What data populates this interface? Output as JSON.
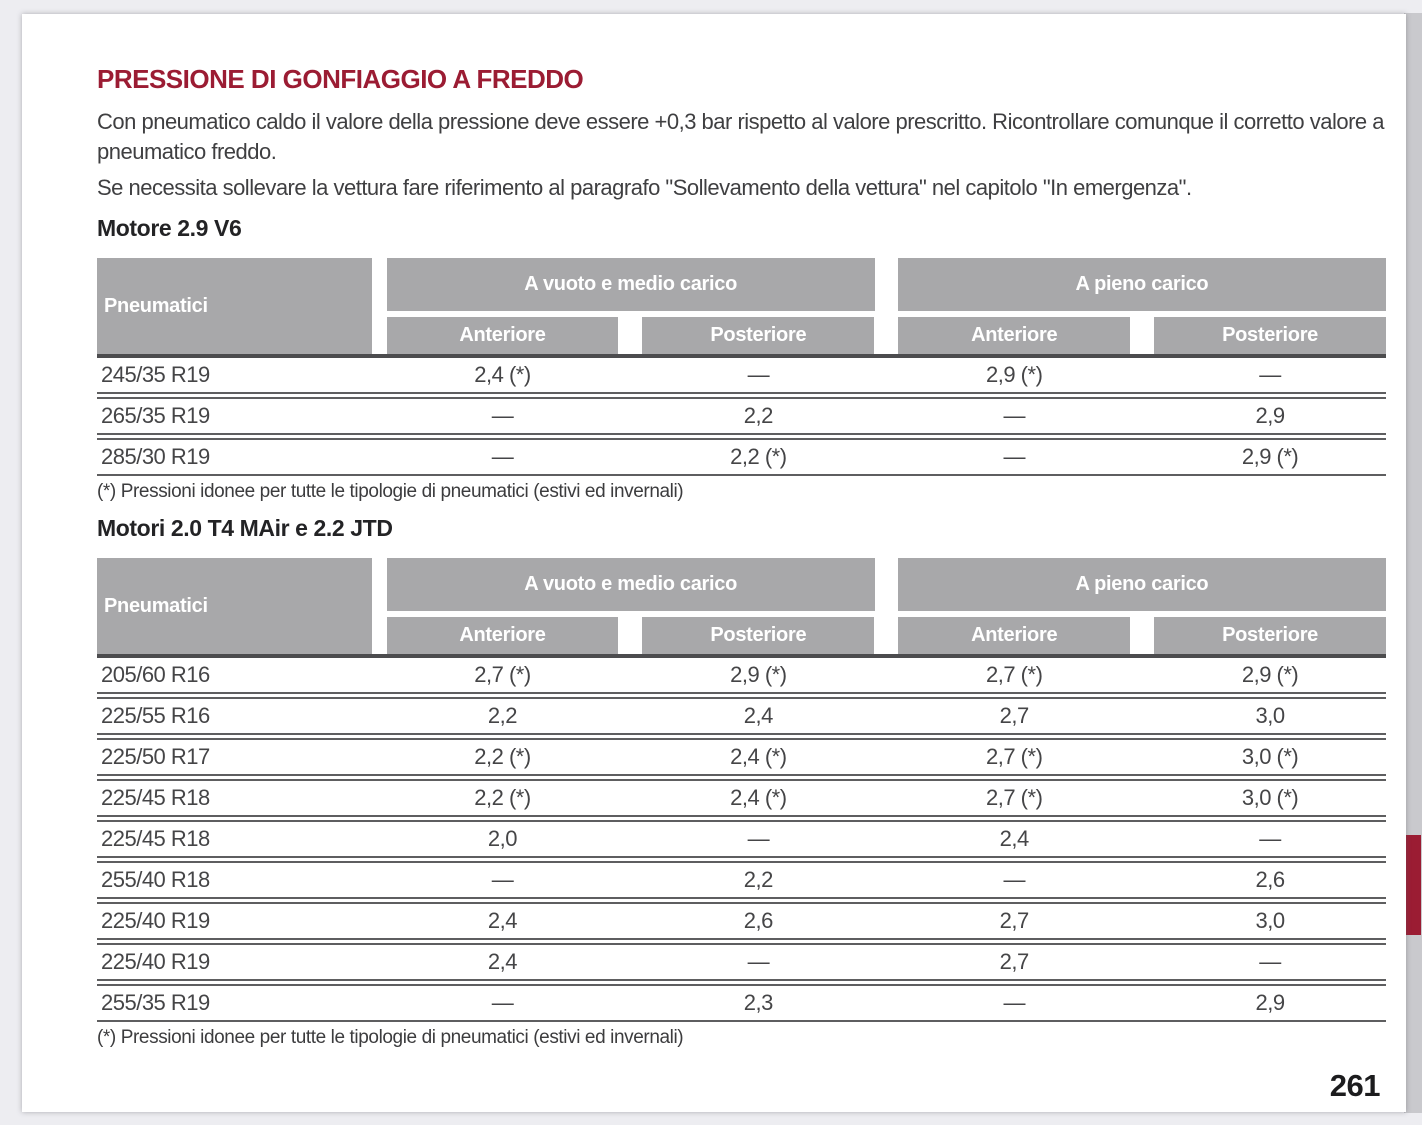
{
  "colors": {
    "accent": "#9b1c33",
    "header-gray": "#a8a8aa"
  },
  "document": {
    "title": "PRESSIONE DI GONFIAGGIO A FREDDO",
    "intro": "Con pneumatico caldo il valore della pressione deve essere +0,3 bar rispetto al valore prescritto. Ricontrollare comunque il corretto valore a pneumatico freddo.",
    "note": "Se necessita sollevare la vettura fare riferimento al paragrafo \"Sollevamento della vettura\" nel capitolo \"In emergenza\".",
    "page_number": "261"
  },
  "table_header": {
    "pneumatici": "Pneumatici",
    "group1": "A vuoto e medio carico",
    "group2": "A pieno carico",
    "anteriore": "Anteriore",
    "posteriore": "Posteriore"
  },
  "section1": {
    "heading": "Motore 2.9 V6",
    "rows": [
      [
        "245/35 R19",
        "2,4 (*)",
        "—",
        "2,9 (*)",
        "—"
      ],
      [
        "265/35 R19",
        "—",
        "2,2",
        "—",
        "2,9"
      ],
      [
        "285/30 R19",
        "—",
        "2,2 (*)",
        "—",
        "2,9 (*)"
      ]
    ],
    "footnote": "(*) Pressioni idonee per tutte le tipologie di pneumatici (estivi ed invernali)"
  },
  "section2": {
    "heading": "Motori 2.0 T4 MAir e 2.2 JTD",
    "rows": [
      [
        "205/60 R16",
        "2,7 (*)",
        "2,9 (*)",
        "2,7 (*)",
        "2,9 (*)"
      ],
      [
        "225/55 R16",
        "2,2",
        "2,4",
        "2,7",
        "3,0"
      ],
      [
        "225/50 R17",
        "2,2 (*)",
        "2,4 (*)",
        "2,7 (*)",
        "3,0 (*)"
      ],
      [
        "225/45 R18",
        "2,2 (*)",
        "2,4 (*)",
        "2,7 (*)",
        "3,0 (*)"
      ],
      [
        "225/45 R18",
        "2,0",
        "—",
        "2,4",
        "—"
      ],
      [
        "255/40 R18",
        "—",
        "2,2",
        "—",
        "2,6"
      ],
      [
        "225/40 R19",
        "2,4",
        "2,6",
        "2,7",
        "3,0"
      ],
      [
        "225/40 R19",
        "2,4",
        "—",
        "2,7",
        "—"
      ],
      [
        "255/35 R19",
        "—",
        "2,3",
        "—",
        "2,9"
      ]
    ],
    "footnote": "(*) Pressioni idonee per tutte le tipologie di pneumatici (estivi ed invernali)"
  }
}
